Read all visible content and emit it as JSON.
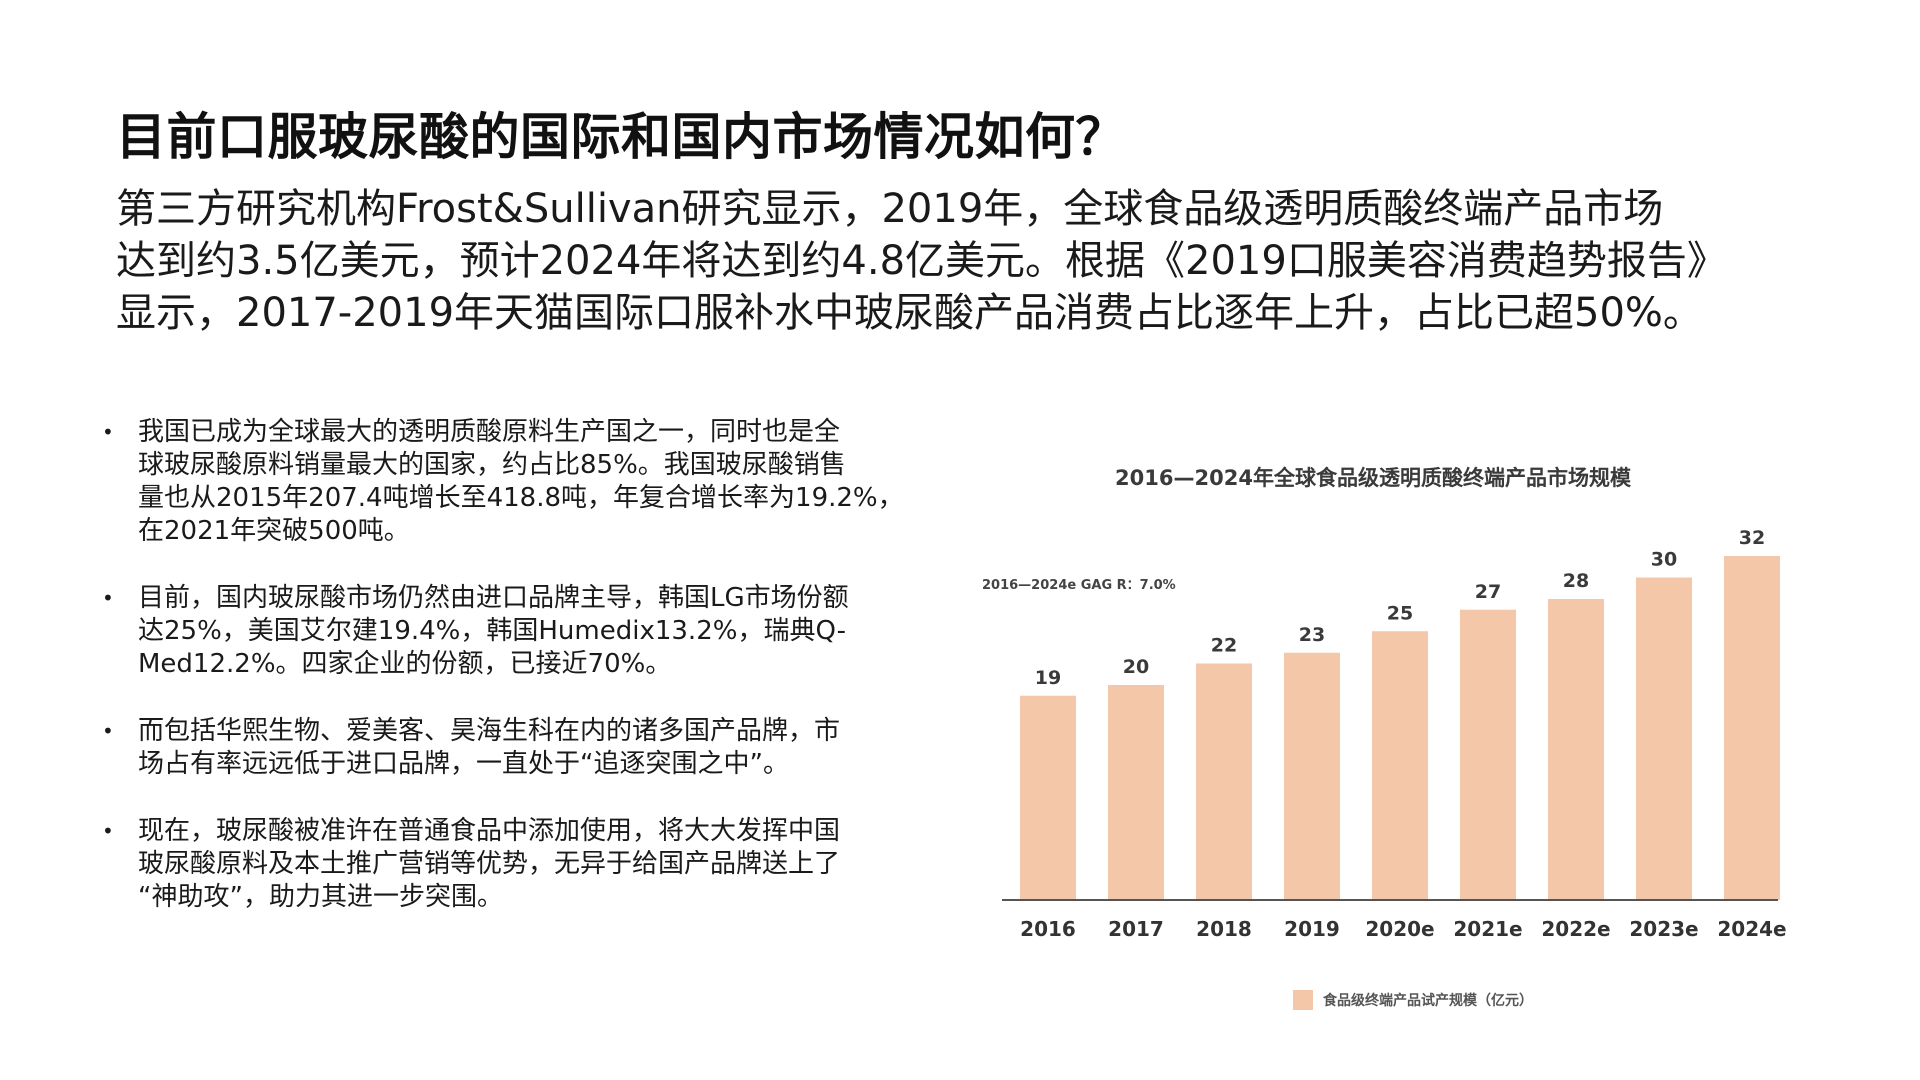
{
  "title": "目前口服玻尿酸的国际和国内市场情况如何？",
  "intro_lines": [
    "第三方研究机构Frost&Sullivan研究显示，2019年，全球食品级透明质酸终端产品市场",
    "达到约3.5亿美元，预计2024年将达到约4.8亿美元。根据《2019口服美容消费趋势报告》",
    "显示，2017-2019年天猫国际口服补水中玻尿酸产品消费占比逐年上升，占比已超50%。"
  ],
  "bullets": [
    [
      "我国已成为全球最大的透明质酸原料生产国之一，同时也是全",
      "球玻尿酸原料销量最大的国家，约占比85%。我国玻尿酸销售",
      "量也从2015年207.4吨增长至418.8吨，年复合增长率为19.2%，",
      "在2021年突破500吨。"
    ],
    [
      "目前，国内玻尿酸市场仍然由进口品牌主导，韩国LG市场份额",
      "达25%，美国艾尔建19.4%，韩国Humedix13.2%，瑞典Q-",
      "Med12.2%。四家企业的份额，已接近70%。"
    ],
    [
      "而包括华熙生物、爱美客、昊海生科在内的诸多国产品牌，市",
      "场占有率远远低于进口品牌，一直处于“追逐突围之中”。"
    ],
    [
      "现在，玻尿酸被准许在普通食品中添加使用，将大大发挥中国",
      "玻尿酸原料及本土推广营销等优势，无异于给国产品牌送上了",
      "“神助攻”，助力其进一步突围。"
    ]
  ],
  "bullet_symbol": "•",
  "colors": {
    "bar": "#f4c7a8",
    "axis": "#555555",
    "text": "#1a1a1a"
  },
  "chart_data": {
    "type": "bar",
    "title": "2016—2024年全球食品级透明质酸终端产品市场规模",
    "annotation": "2016—2024e GAG R：7.0%",
    "categories": [
      "2016",
      "2017",
      "2018",
      "2019",
      "2020e",
      "2021e",
      "2022e",
      "2023e",
      "2024e"
    ],
    "series": [
      {
        "name": "食品级终端产品试产规模（亿元）",
        "values": [
          19,
          20,
          22,
          23,
          25,
          27,
          28,
          30,
          32
        ]
      }
    ],
    "ylim": [
      0,
      32
    ],
    "grid": false,
    "legend": "bottom-center"
  }
}
